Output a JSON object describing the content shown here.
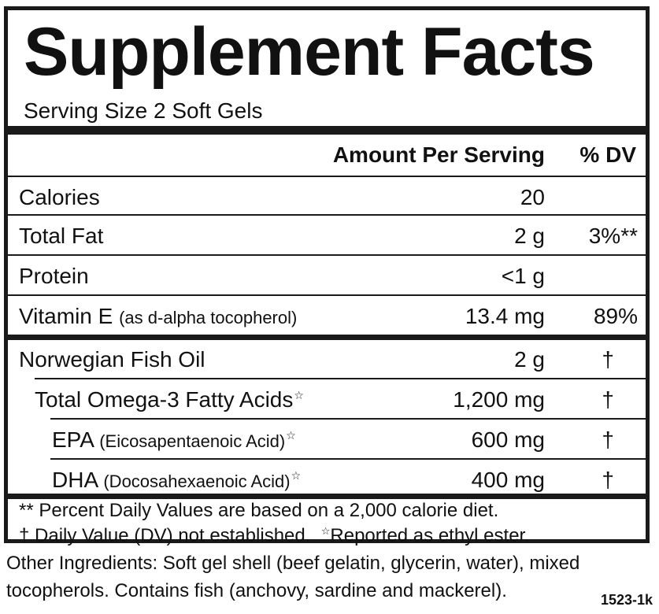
{
  "title": "Supplement Facts",
  "serving_size": "Serving Size 2 Soft Gels",
  "header": {
    "amount": "Amount Per Serving",
    "dv": "% DV"
  },
  "rows": [
    {
      "name": "Calories",
      "sub": "",
      "amount": "20",
      "dv": ""
    },
    {
      "name": "Total Fat",
      "sub": "",
      "amount": "2 g",
      "dv": "3%**"
    },
    {
      "name": "Protein",
      "sub": "",
      "amount": "<1 g",
      "dv": ""
    },
    {
      "name": "Vitamin E ",
      "sub": "(as d-alpha tocopherol)",
      "amount": "13.4 mg",
      "dv": "89%"
    },
    {
      "name": "Norwegian Fish Oil",
      "sub": "",
      "amount": "2 g",
      "dv": "†"
    },
    {
      "name": "Total Omega-3 Fatty Acids",
      "sub": "",
      "star": "☆",
      "amount": "1,200 mg",
      "dv": "†"
    },
    {
      "name": "EPA ",
      "sub": "(Eicosapentaenoic Acid)",
      "star": "☆",
      "amount": "600 mg",
      "dv": "†"
    },
    {
      "name": "DHA ",
      "sub": "(Docosahexaenoic Acid)",
      "star": "☆",
      "amount": "400 mg",
      "dv": "†"
    }
  ],
  "footnotes": {
    "line1": "** Percent Daily Values are based on a 2,000 calorie diet.",
    "line2_a": "† Daily Value (DV) not established.",
    "line2_star": "☆",
    "line2_b": "Reported as ethyl ester."
  },
  "other_ingredients": "Other Ingredients: Soft gel shell (beef gelatin, glycerin, water), mixed tocopherols. Contains fish (anchovy, sardine and mackerel).",
  "product_code": "1523-1k"
}
